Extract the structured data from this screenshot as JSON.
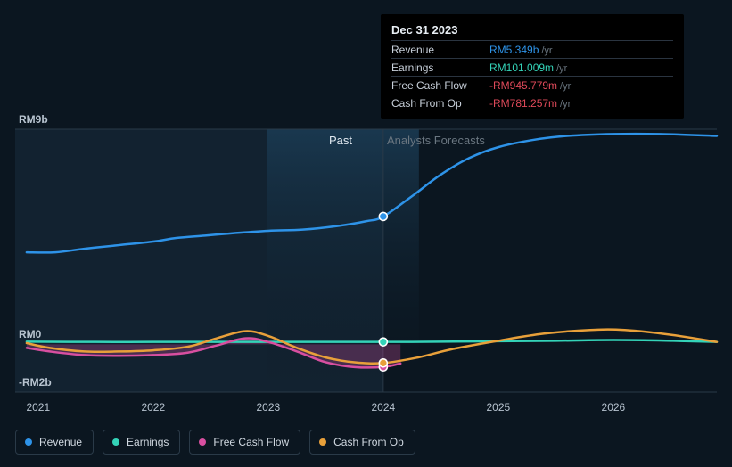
{
  "tooltip": {
    "date": "Dec 31 2023",
    "rows": [
      {
        "label": "Revenue",
        "value": "RM5.349b",
        "unit": "/yr",
        "color": "#2e93e8"
      },
      {
        "label": "Earnings",
        "value": "RM101.009m",
        "unit": "/yr",
        "color": "#34d3b8"
      },
      {
        "label": "Free Cash Flow",
        "value": "-RM945.779m",
        "unit": "/yr",
        "color": "#e04a5a"
      },
      {
        "label": "Cash From Op",
        "value": "-RM781.257m",
        "unit": "/yr",
        "color": "#e04a5a"
      }
    ]
  },
  "labels": {
    "past": "Past",
    "forecast": "Analysts Forecasts"
  },
  "y_axis": {
    "ticks": [
      {
        "label": "RM9b",
        "value": 9
      },
      {
        "label": "RM0",
        "value": 0
      },
      {
        "label": "-RM2b",
        "value": -2
      }
    ],
    "min": -2,
    "max": 9
  },
  "x_axis": {
    "ticks": [
      {
        "label": "2021",
        "value": 2021
      },
      {
        "label": "2022",
        "value": 2022
      },
      {
        "label": "2023",
        "value": 2023
      },
      {
        "label": "2024",
        "value": 2024
      },
      {
        "label": "2025",
        "value": 2025
      },
      {
        "label": "2026",
        "value": 2026
      }
    ],
    "min": 2020.8,
    "max": 2026.9
  },
  "split_x": 2024,
  "chart": {
    "type": "line",
    "background_color": "#0b1620",
    "past_fill": "#122230",
    "future_fill": "#0b1620",
    "gradient_top": "#1a3a52",
    "gradient_bottom": "#0b1620",
    "baseline_color": "#2a3a48",
    "line_width": 2.5,
    "marker_radius": 4.5,
    "marker_stroke": "#ffffff",
    "marker_stroke_width": 1.6
  },
  "series": [
    {
      "id": "revenue",
      "name": "Revenue",
      "color": "#2e93e8",
      "points": [
        [
          2020.9,
          3.85
        ],
        [
          2021.15,
          3.85
        ],
        [
          2021.4,
          4.0
        ],
        [
          2021.7,
          4.15
        ],
        [
          2022.0,
          4.3
        ],
        [
          2022.2,
          4.45
        ],
        [
          2022.45,
          4.55
        ],
        [
          2022.7,
          4.65
        ],
        [
          2023.0,
          4.75
        ],
        [
          2023.3,
          4.8
        ],
        [
          2023.6,
          4.95
        ],
        [
          2023.85,
          5.15
        ],
        [
          2024.0,
          5.349
        ],
        [
          2024.25,
          6.2
        ],
        [
          2024.5,
          7.1
        ],
        [
          2024.75,
          7.8
        ],
        [
          2025.0,
          8.25
        ],
        [
          2025.3,
          8.55
        ],
        [
          2025.6,
          8.72
        ],
        [
          2026.0,
          8.8
        ],
        [
          2026.4,
          8.8
        ],
        [
          2026.9,
          8.72
        ]
      ],
      "marker_at": 2024
    },
    {
      "id": "earnings",
      "name": "Earnings",
      "color": "#34d3b8",
      "points": [
        [
          2020.9,
          0.11
        ],
        [
          2021.5,
          0.1
        ],
        [
          2022.0,
          0.1
        ],
        [
          2022.5,
          0.1
        ],
        [
          2023.0,
          0.1
        ],
        [
          2023.5,
          0.1
        ],
        [
          2024.0,
          0.101
        ],
        [
          2024.5,
          0.11
        ],
        [
          2025.0,
          0.13
        ],
        [
          2025.5,
          0.15
        ],
        [
          2026.0,
          0.18
        ],
        [
          2026.5,
          0.15
        ],
        [
          2026.9,
          0.1
        ]
      ],
      "marker_at": 2024
    },
    {
      "id": "fcf",
      "name": "Free Cash Flow",
      "color": "#d84fa0",
      "fill": true,
      "fill_opacity": 0.28,
      "points": [
        [
          2020.9,
          -0.15
        ],
        [
          2021.1,
          -0.3
        ],
        [
          2021.4,
          -0.45
        ],
        [
          2021.7,
          -0.48
        ],
        [
          2022.0,
          -0.45
        ],
        [
          2022.3,
          -0.35
        ],
        [
          2022.55,
          -0.05
        ],
        [
          2022.8,
          0.25
        ],
        [
          2023.0,
          0.1
        ],
        [
          2023.25,
          -0.3
        ],
        [
          2023.5,
          -0.75
        ],
        [
          2023.75,
          -0.95
        ],
        [
          2024.0,
          -0.946
        ],
        [
          2024.15,
          -0.8
        ]
      ],
      "marker_at": 2024
    },
    {
      "id": "cfo",
      "name": "Cash From Op",
      "color": "#e8a03a",
      "points": [
        [
          2020.9,
          0.05
        ],
        [
          2021.1,
          -0.15
        ],
        [
          2021.4,
          -0.3
        ],
        [
          2021.7,
          -0.3
        ],
        [
          2022.0,
          -0.25
        ],
        [
          2022.3,
          -0.1
        ],
        [
          2022.55,
          0.25
        ],
        [
          2022.8,
          0.55
        ],
        [
          2023.0,
          0.35
        ],
        [
          2023.25,
          -0.15
        ],
        [
          2023.5,
          -0.55
        ],
        [
          2023.75,
          -0.75
        ],
        [
          2024.0,
          -0.781
        ],
        [
          2024.3,
          -0.55
        ],
        [
          2024.6,
          -0.2
        ],
        [
          2025.0,
          0.15
        ],
        [
          2025.4,
          0.45
        ],
        [
          2025.8,
          0.6
        ],
        [
          2026.1,
          0.6
        ],
        [
          2026.5,
          0.4
        ],
        [
          2026.9,
          0.1
        ]
      ],
      "marker_at": 2024
    }
  ],
  "legend": [
    {
      "id": "revenue",
      "label": "Revenue",
      "color": "#2e93e8"
    },
    {
      "id": "earnings",
      "label": "Earnings",
      "color": "#34d3b8"
    },
    {
      "id": "fcf",
      "label": "Free Cash Flow",
      "color": "#d84fa0"
    },
    {
      "id": "cfo",
      "label": "Cash From Op",
      "color": "#e8a03a"
    }
  ]
}
